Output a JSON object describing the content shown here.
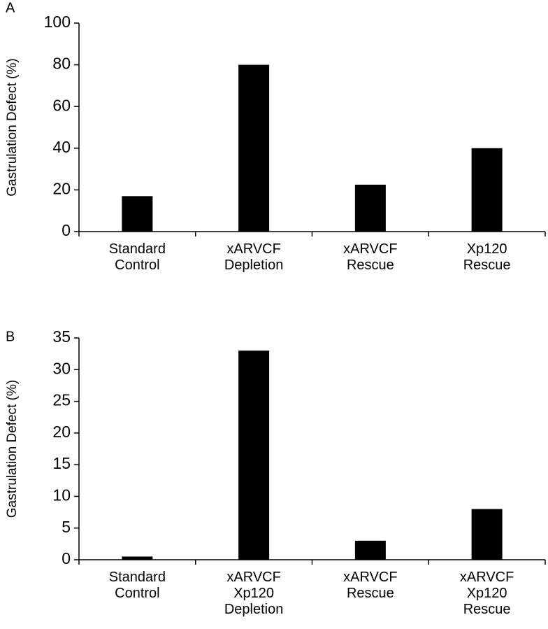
{
  "chart_data": [
    {
      "type": "bar",
      "panel_label": "A",
      "ylabel": "Gastrulation Defect (%)",
      "categories": [
        "Standard\nControl",
        "xARVCF\nDepletion",
        "xARVCF\nRescue",
        "Xp120\nRescue"
      ],
      "values": [
        17,
        80,
        22.5,
        40
      ],
      "color": "#000000",
      "ylim": [
        0,
        100
      ],
      "yticks": [
        0,
        20,
        40,
        60,
        80,
        100
      ],
      "grid": false
    },
    {
      "type": "bar",
      "panel_label": "B",
      "ylabel": "Gastrulation Defect (%)",
      "categories": [
        "Standard\nControl",
        "xARVCF\nXp120\nDepletion",
        "xARVCF\nRescue",
        "xARVCF\nXp120\nRescue"
      ],
      "values": [
        0.5,
        33,
        3,
        8
      ],
      "color": "#000000",
      "ylim": [
        0,
        35
      ],
      "yticks": [
        0,
        5,
        10,
        15,
        20,
        25,
        30,
        35
      ],
      "grid": false
    }
  ]
}
